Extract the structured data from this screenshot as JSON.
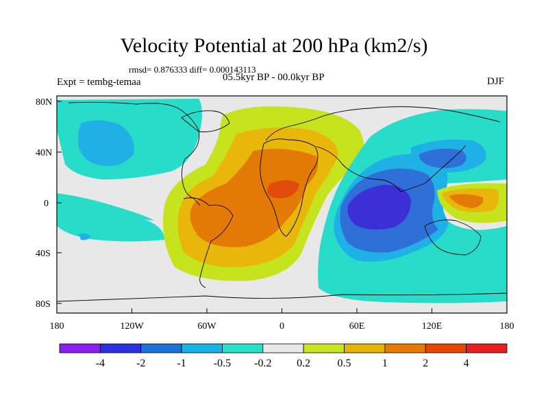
{
  "title": "Velocity Potential at 200 hPa (km2/s)",
  "stats_line": "rmsd= 0.876333 diff= 0.000143113",
  "left_label": "Expt = tembg-temaa",
  "center_label": "05.5kyr BP - 00.0kyr BP",
  "right_label": "DJF",
  "y_axis_labels": [
    "80N",
    "40N",
    "0",
    "40S",
    "80S"
  ],
  "x_axis_labels": [
    "180",
    "120W",
    "60W",
    "0",
    "60E",
    "120E",
    "180"
  ],
  "colorbar": {
    "labels": [
      "-4",
      "-2",
      "-1",
      "-0.5",
      "-0.2",
      "0.2",
      "0.5",
      "1",
      "2",
      "4"
    ],
    "colors": [
      "#8a1ff0",
      "#2b2fe0",
      "#1a73d9",
      "#17b4e8",
      "#29e0c9",
      "#e8e8e8",
      "#c8e61f",
      "#e6b400",
      "#e67a00",
      "#e64600",
      "#e61e1e"
    ]
  },
  "fill_colors": {
    "neg4": "#3b2fd6",
    "neg2": "#2f6fd8",
    "neg1": "#1fb0e6",
    "neg05": "#27dcc8",
    "neutral": "#e8e8e8",
    "pos02": "#c6e41e",
    "pos05": "#e8b70a",
    "pos1": "#e27a05",
    "pos2": "#e24c0a"
  }
}
